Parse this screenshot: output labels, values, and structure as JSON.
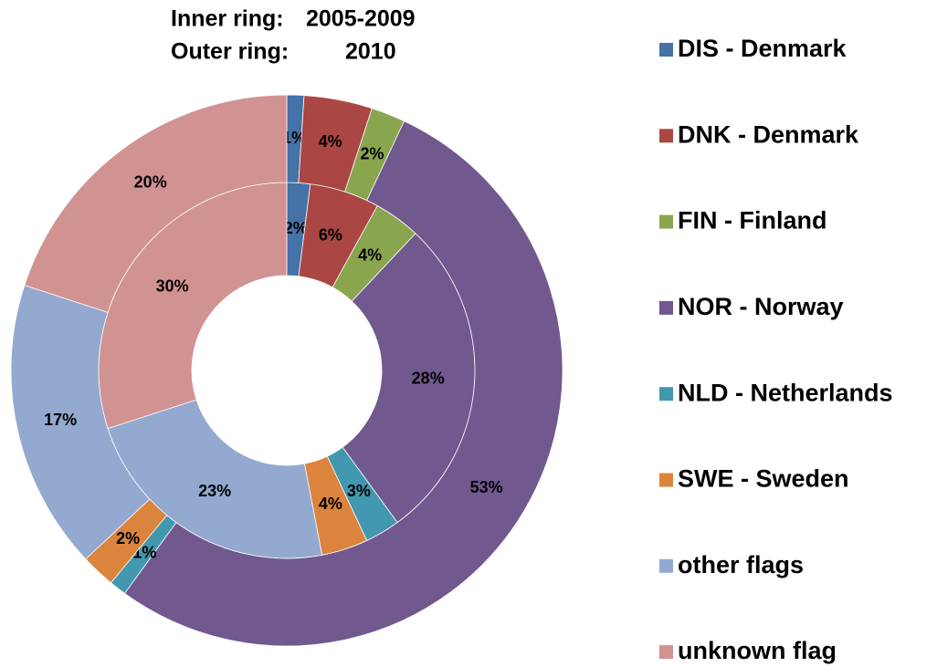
{
  "chart_data": {
    "type": "donut",
    "categories": [
      "DIS - Denmark",
      "DNK - Denmark",
      "FIN - Finland",
      "NOR - Norway",
      "NLD - Netherlands",
      "SWE - Sweden",
      "other flags",
      "unknown flag"
    ],
    "colors": [
      "#4572a7",
      "#aa4643",
      "#89a54e",
      "#71588f",
      "#4198af",
      "#db843d",
      "#93a9cf",
      "#d19392"
    ],
    "series": [
      {
        "name": "2005-2009",
        "ring_label": "Inner ring:",
        "values": [
          2,
          6,
          4,
          28,
          3,
          4,
          23,
          30
        ],
        "value_labels": [
          "2%",
          "6%",
          "4%",
          "28%",
          "3%",
          "4%",
          "23%",
          "30%"
        ]
      },
      {
        "name": "2010",
        "ring_label": "Outer ring:",
        "values": [
          1,
          4,
          2,
          53,
          1,
          2,
          17,
          20
        ],
        "value_labels": [
          "1%",
          "4%",
          "2%",
          "53%",
          "1%",
          "2%",
          "17%",
          "20%"
        ]
      }
    ],
    "legend": "right"
  }
}
